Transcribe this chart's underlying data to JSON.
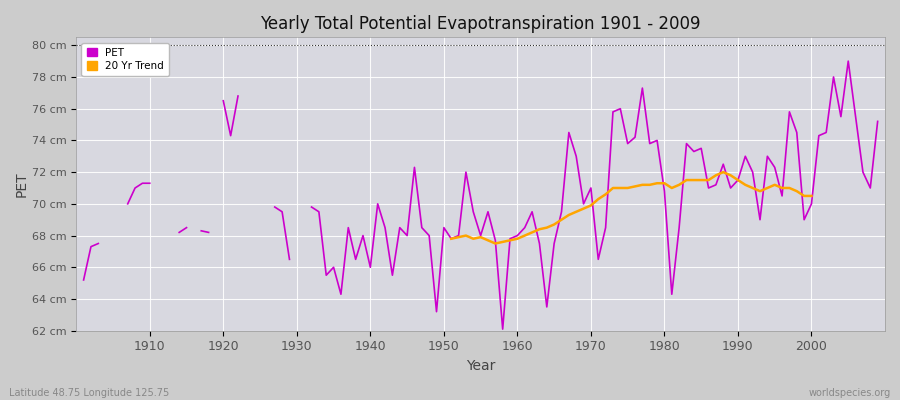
{
  "title": "Yearly Total Potential Evapotranspiration 1901 - 2009",
  "xlabel": "Year",
  "ylabel": "PET",
  "subtitle": "Latitude 48.75 Longitude 125.75",
  "watermark": "worldspecies.org",
  "pet_color": "#cc00cc",
  "trend_color": "#ffa500",
  "fig_bg": "#cccccc",
  "plot_bg": "#d8d8e0",
  "ylim_low": 62,
  "ylim_high": 80.5,
  "xlim_low": 1900,
  "xlim_high": 2010,
  "yticks": [
    62,
    64,
    66,
    68,
    70,
    72,
    74,
    76,
    78,
    80
  ],
  "ytick_labels": [
    "62 cm",
    "64 cm",
    "66 cm",
    "68 cm",
    "70 cm",
    "72 cm",
    "74 cm",
    "76 cm",
    "78 cm",
    "80 cm"
  ],
  "xtick_positions": [
    1910,
    1920,
    1930,
    1940,
    1950,
    1960,
    1970,
    1980,
    1990,
    2000
  ],
  "xtick_labels": [
    "1910",
    "1920",
    "1930",
    "1940",
    "1950",
    "1960",
    "1970",
    "1980",
    "1990",
    "2000"
  ],
  "pet_years": [
    1901,
    1902,
    1903,
    1907,
    1908,
    1909,
    1910,
    1914,
    1915,
    1917,
    1918,
    1920,
    1921,
    1922,
    1927,
    1928,
    1929,
    1932,
    1933,
    1934,
    1935,
    1936,
    1937,
    1938,
    1939,
    1940,
    1941,
    1942,
    1943,
    1944,
    1945,
    1946,
    1947,
    1948,
    1949,
    1950,
    1951,
    1952,
    1953,
    1954,
    1955,
    1956,
    1957,
    1958,
    1959,
    1960,
    1961,
    1962,
    1963,
    1964,
    1965,
    1966,
    1967,
    1968,
    1969,
    1970,
    1971,
    1972,
    1973,
    1974,
    1975,
    1976,
    1977,
    1978,
    1979,
    1980,
    1981,
    1982,
    1983,
    1984,
    1985,
    1986,
    1987,
    1988,
    1989,
    1990,
    1991,
    1992,
    1993,
    1994,
    1995,
    1996,
    1997,
    1998,
    1999,
    2000,
    2001,
    2002,
    2003,
    2004,
    2005,
    2006,
    2007,
    2008,
    2009
  ],
  "pet_values": [
    65.2,
    67.3,
    67.5,
    70.0,
    71.0,
    71.3,
    71.3,
    68.2,
    68.5,
    68.3,
    68.2,
    76.5,
    74.3,
    76.8,
    69.8,
    69.5,
    66.5,
    69.8,
    69.5,
    65.5,
    66.0,
    64.3,
    68.5,
    66.5,
    68.0,
    66.0,
    70.0,
    68.5,
    65.5,
    68.5,
    68.0,
    72.3,
    68.5,
    68.0,
    63.2,
    68.5,
    67.8,
    68.0,
    72.0,
    69.5,
    68.0,
    69.5,
    67.7,
    62.1,
    67.8,
    68.0,
    68.5,
    69.5,
    67.5,
    63.5,
    67.5,
    69.5,
    74.5,
    73.0,
    70.0,
    71.0,
    66.5,
    68.5,
    75.8,
    76.0,
    73.8,
    74.2,
    77.3,
    73.8,
    74.0,
    70.8,
    64.3,
    68.5,
    73.8,
    73.3,
    73.5,
    71.0,
    71.2,
    72.5,
    71.0,
    71.5,
    73.0,
    72.0,
    69.0,
    73.0,
    72.3,
    70.5,
    75.8,
    74.5,
    69.0,
    70.0,
    74.3,
    74.5,
    78.0,
    75.5,
    79.0,
    75.5,
    72.0,
    71.0,
    75.2
  ],
  "pet_segments": [
    [
      1901,
      1902,
      1903
    ],
    [
      1907,
      1908,
      1909,
      1910
    ],
    [
      1914,
      1915
    ],
    [
      1917,
      1918
    ],
    [
      1920,
      1921,
      1922
    ],
    [
      1927,
      1928,
      1929
    ],
    [
      1932,
      1933,
      1934,
      1935,
      1936,
      1937,
      1938,
      1939,
      1940,
      1941,
      1942,
      1943,
      1944,
      1945,
      1946,
      1947,
      1948,
      1949,
      1950,
      1951,
      1952,
      1953,
      1954,
      1955,
      1956,
      1957,
      1958,
      1959,
      1960,
      1961,
      1962,
      1963,
      1964,
      1965,
      1966,
      1967,
      1968,
      1969,
      1970,
      1971,
      1972,
      1973,
      1974,
      1975,
      1976,
      1977,
      1978,
      1979,
      1980,
      1981,
      1982,
      1983,
      1984,
      1985,
      1986,
      1987,
      1988,
      1989,
      1990,
      1991,
      1992,
      1993,
      1994,
      1995,
      1996,
      1997,
      1998,
      1999,
      2000,
      2001,
      2002,
      2003,
      2004,
      2005,
      2006,
      2007,
      2008,
      2009
    ]
  ],
  "trend_years": [
    1951,
    1952,
    1953,
    1954,
    1955,
    1956,
    1957,
    1958,
    1959,
    1960,
    1961,
    1962,
    1963,
    1964,
    1965,
    1966,
    1967,
    1968,
    1969,
    1970,
    1971,
    1972,
    1973,
    1974,
    1975,
    1976,
    1977,
    1978,
    1979,
    1980,
    1981,
    1982,
    1983,
    1984,
    1985,
    1986,
    1987,
    1988,
    1989,
    1990,
    1991,
    1992,
    1993,
    1994,
    1995,
    1996,
    1997,
    1998,
    1999,
    2000
  ],
  "trend_values": [
    67.8,
    67.9,
    68.0,
    67.8,
    67.9,
    67.7,
    67.5,
    67.6,
    67.7,
    67.8,
    68.0,
    68.2,
    68.4,
    68.5,
    68.7,
    69.0,
    69.3,
    69.5,
    69.7,
    69.9,
    70.3,
    70.6,
    71.0,
    71.0,
    71.0,
    71.1,
    71.2,
    71.2,
    71.3,
    71.3,
    71.0,
    71.2,
    71.5,
    71.5,
    71.5,
    71.5,
    71.8,
    72.0,
    71.8,
    71.5,
    71.2,
    71.0,
    70.8,
    71.0,
    71.2,
    71.0,
    71.0,
    70.8,
    70.5,
    70.5
  ]
}
